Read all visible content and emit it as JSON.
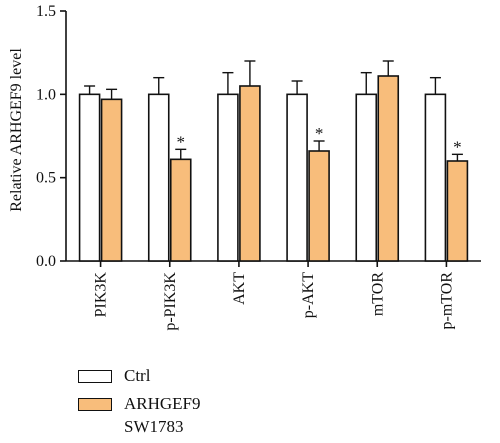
{
  "chart_data": {
    "type": "bar",
    "title": "",
    "xlabel": "",
    "ylabel": "Relative ARHGEF9 level",
    "ylim": [
      0,
      1.5
    ],
    "yticks": [
      "0.0",
      "0.5",
      "1.0",
      "1.5"
    ],
    "categories": [
      "PIK3K",
      "p-PIK3K",
      "AKT",
      "p-AKT",
      "mTOR",
      "p-mTOR"
    ],
    "grid": false,
    "legend_position": "bottom-left",
    "series": [
      {
        "name": "Ctrl",
        "color": "#ffffff",
        "values": [
          1.0,
          1.0,
          1.0,
          1.0,
          1.0,
          1.0
        ],
        "errors": [
          0.05,
          0.1,
          0.13,
          0.08,
          0.13,
          0.1
        ],
        "annotations": [
          "",
          "",
          "",
          "",
          "",
          ""
        ]
      },
      {
        "name": "ARHGEF9\nSW1783",
        "color": "#f8bd7b",
        "values": [
          0.97,
          0.61,
          1.05,
          0.66,
          1.11,
          0.6
        ],
        "errors": [
          0.06,
          0.06,
          0.15,
          0.06,
          0.09,
          0.04
        ],
        "annotations": [
          "",
          "*",
          "",
          "*",
          "",
          "*"
        ]
      }
    ]
  }
}
